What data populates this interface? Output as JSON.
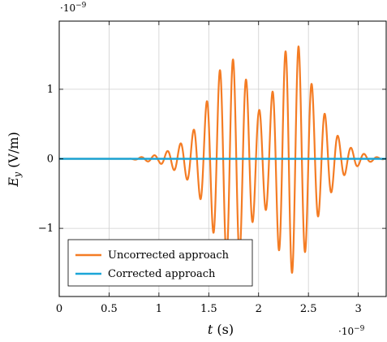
{
  "chart_data": {
    "type": "line",
    "x_axis": {
      "label_symbol": "t",
      "label_unit": " (s)",
      "exponent": "·10",
      "exponent_power": "−9",
      "min": 0,
      "max": 3.28,
      "ticks": [
        0,
        0.5,
        1,
        1.5,
        2,
        2.5,
        3
      ],
      "tick_labels": [
        "0",
        "0.5",
        "1",
        "1.5",
        "2",
        "2.5",
        "3"
      ]
    },
    "y_axis": {
      "label_symbol": "E",
      "label_subscript": "y",
      "label_unit": " (V/m)",
      "exponent": "·10",
      "exponent_power": "−9",
      "min": -1.98,
      "max": 1.98,
      "ticks": [
        -1,
        0,
        1
      ],
      "tick_labels": [
        "−1",
        "0",
        "1"
      ]
    },
    "grid": true,
    "legend_position": "bottom-left",
    "series": [
      {
        "name": "Uncorrected approach",
        "color": "#f47c24",
        "frequency": 7.6,
        "envelope": {
          "t": [
            0.0,
            0.7,
            0.9,
            1.0,
            1.1,
            1.2,
            1.3,
            1.4,
            1.5,
            1.6,
            1.7,
            1.8,
            1.9,
            2.0,
            2.1,
            2.2,
            2.3,
            2.4,
            2.5,
            2.6,
            2.7,
            2.8,
            2.9,
            3.0,
            3.1,
            3.2,
            3.28
          ],
          "amplitude": [
            0.0,
            0.0,
            0.04,
            0.06,
            0.12,
            0.2,
            0.32,
            0.52,
            0.9,
            1.25,
            1.45,
            1.4,
            1.05,
            0.7,
            0.75,
            1.3,
            1.65,
            1.62,
            1.2,
            0.82,
            0.55,
            0.32,
            0.18,
            0.1,
            0.05,
            0.02,
            0.0
          ]
        }
      },
      {
        "name": "Corrected approach",
        "color": "#1ba6d8",
        "x": [
          0,
          3.28
        ],
        "y": [
          0,
          0
        ]
      }
    ]
  }
}
